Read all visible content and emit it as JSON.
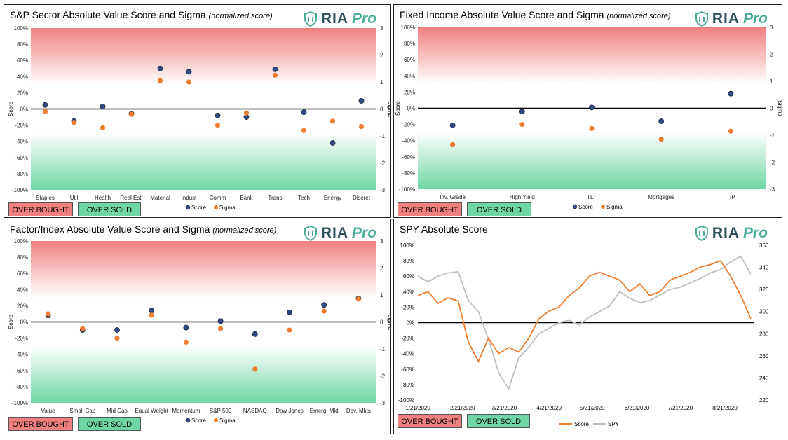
{
  "panels": [
    {
      "id": "sector",
      "title": "S&P Sector Absolute Value Score and Sigma",
      "title_note": "(normalized score)"
    },
    {
      "id": "fixed",
      "title": "Fixed Income Absolute Value Score and Sigma",
      "title_note": "(normalized score)"
    },
    {
      "id": "factor",
      "title": "Factor/Index Absolute Value Score and Sigma",
      "title_note": "(normalized score)"
    },
    {
      "id": "spy",
      "title": "SPY Absolute Score",
      "title_note": ""
    }
  ],
  "logo": {
    "text": "RIA",
    "pro": "Pro",
    "icon": "shield-icon"
  },
  "buttons": {
    "overbought": "OVER BOUGHT",
    "oversold": "OVER SOLD"
  },
  "colors": {
    "score": "#2e4a86",
    "sigma": "#ed7d31",
    "spy_line": "#bfbfbf",
    "overbought": "#f0807e",
    "oversold": "#6ed6a4"
  },
  "chart_data": [
    {
      "id": "sector",
      "type": "scatter",
      "categories": [
        "Staples",
        "Util",
        "Health",
        "Real Est.",
        "Material",
        "Indust",
        "Comm",
        "Bank",
        "Trans",
        "Tech",
        "Energy",
        "Discret"
      ],
      "series": [
        {
          "name": "Score",
          "axis": "left",
          "values": [
            5,
            -15,
            3,
            -6,
            50,
            46,
            -8,
            -10,
            49,
            -4,
            -42,
            10
          ]
        },
        {
          "name": "Sigma",
          "axis": "right",
          "values": [
            -0.1,
            -0.5,
            -0.7,
            -0.2,
            1.05,
            1.0,
            -0.6,
            -0.15,
            1.25,
            -0.8,
            -0.45,
            -0.65
          ]
        }
      ],
      "ylabel": "Score",
      "y2label": "Sigma",
      "ylim": [
        -100,
        100
      ],
      "y2lim": [
        -3,
        3
      ],
      "yticks": [
        "100%",
        "80%",
        "60%",
        "40%",
        "20%",
        "0%",
        "-20%",
        "-40%",
        "-60%",
        "-80%",
        "-100%"
      ],
      "y2ticks": [
        "3",
        "2",
        "1",
        "0",
        "-1",
        "-2",
        "-3"
      ]
    },
    {
      "id": "fixed",
      "type": "scatter",
      "categories": [
        "Inv. Grade",
        "High Yield",
        "TLT",
        "Mortgages",
        "TIP"
      ],
      "series": [
        {
          "name": "Score",
          "axis": "left",
          "values": [
            -21,
            -4,
            1,
            -16,
            18
          ]
        },
        {
          "name": "Sigma",
          "axis": "right",
          "values": [
            -1.35,
            -0.6,
            -0.75,
            -1.15,
            -0.85
          ]
        }
      ],
      "ylabel": "Score",
      "y2label": "Sigma",
      "ylim": [
        -100,
        100
      ],
      "y2lim": [
        -3,
        3
      ],
      "yticks": [
        "100%",
        "80%",
        "60%",
        "40%",
        "20%",
        "0%",
        "-20%",
        "-40%",
        "-60%",
        "-80%",
        "-100%"
      ],
      "y2ticks": [
        "3",
        "2",
        "1",
        "0",
        "-1",
        "-2",
        "-3"
      ]
    },
    {
      "id": "factor",
      "type": "scatter",
      "categories": [
        "Value",
        "Small Cap",
        "Mid Cap",
        "Equal Weight",
        "Momentum",
        "S&P 500",
        "NASDAQ",
        "Dow Jones",
        "Emerg. Mkt",
        "Dev. Mkts"
      ],
      "series": [
        {
          "name": "Score",
          "axis": "left",
          "values": [
            8,
            -10,
            -10,
            14,
            -7,
            1,
            -15,
            12,
            21,
            29
          ]
        },
        {
          "name": "Sigma",
          "axis": "right",
          "values": [
            0.3,
            -0.25,
            -0.6,
            0.25,
            -0.75,
            -0.25,
            -1.75,
            -0.3,
            0.4,
            0.85
          ]
        }
      ],
      "ylabel": "Score",
      "y2label": "Sigma",
      "ylim": [
        -100,
        100
      ],
      "y2lim": [
        -3,
        3
      ],
      "yticks": [
        "100%",
        "80%",
        "60%",
        "40%",
        "20%",
        "0%",
        "-20%",
        "-40%",
        "-60%",
        "-80%",
        "-100%"
      ],
      "y2ticks": [
        "3",
        "2",
        "1",
        "0",
        "-1",
        "-2",
        "-3"
      ]
    },
    {
      "id": "spy",
      "type": "line",
      "xticks": [
        "1/21/2020",
        "2/21/2020",
        "3/21/2020",
        "4/21/2020",
        "5/21/2020",
        "6/21/2020",
        "7/21/2020",
        "8/21/2020"
      ],
      "yticks": [
        "100%",
        "80%",
        "60%",
        "40%",
        "20%",
        "0%",
        "-20%",
        "-40%",
        "-60%",
        "-80%",
        "-100%"
      ],
      "y2ticks": [
        "360",
        "340",
        "320",
        "300",
        "280",
        "260",
        "240",
        "220"
      ],
      "ylim": [
        -100,
        100
      ],
      "y2lim": [
        220,
        360
      ],
      "series": [
        {
          "name": "Score",
          "axis": "left",
          "x": [
            "1/21/2020",
            "1/28/2020",
            "2/4/2020",
            "2/11/2020",
            "2/18/2020",
            "2/25/2020",
            "3/3/2020",
            "3/10/2020",
            "3/17/2020",
            "3/24/2020",
            "3/31/2020",
            "4/7/2020",
            "4/14/2020",
            "4/21/2020",
            "4/28/2020",
            "5/5/2020",
            "5/12/2020",
            "5/19/2020",
            "5/26/2020",
            "6/2/2020",
            "6/9/2020",
            "6/16/2020",
            "6/23/2020",
            "6/30/2020",
            "7/7/2020",
            "7/14/2020",
            "7/21/2020",
            "7/28/2020",
            "8/4/2020",
            "8/11/2020",
            "8/18/2020",
            "8/25/2020",
            "9/1/2020",
            "9/8/2020"
          ],
          "values": [
            35,
            40,
            25,
            32,
            28,
            -25,
            -50,
            -20,
            -40,
            -32,
            -38,
            -20,
            5,
            15,
            20,
            35,
            45,
            60,
            65,
            60,
            55,
            40,
            50,
            35,
            40,
            55,
            60,
            65,
            72,
            75,
            80,
            60,
            35,
            5
          ]
        },
        {
          "name": "SPY",
          "axis": "right",
          "x": [
            "1/21/2020",
            "1/28/2020",
            "2/4/2020",
            "2/11/2020",
            "2/18/2020",
            "2/25/2020",
            "3/3/2020",
            "3/10/2020",
            "3/17/2020",
            "3/24/2020",
            "3/31/2020",
            "4/7/2020",
            "4/14/2020",
            "4/21/2020",
            "4/28/2020",
            "5/5/2020",
            "5/12/2020",
            "5/19/2020",
            "5/26/2020",
            "6/2/2020",
            "6/9/2020",
            "6/16/2020",
            "6/23/2020",
            "6/30/2020",
            "7/7/2020",
            "7/14/2020",
            "7/21/2020",
            "7/28/2020",
            "8/4/2020",
            "8/11/2020",
            "8/18/2020",
            "8/25/2020",
            "9/1/2020",
            "9/8/2020"
          ],
          "values": [
            332,
            327,
            332,
            335,
            336,
            310,
            300,
            275,
            245,
            230,
            258,
            268,
            280,
            285,
            290,
            292,
            288,
            295,
            300,
            305,
            318,
            312,
            308,
            310,
            315,
            320,
            322,
            326,
            330,
            335,
            338,
            345,
            350,
            334
          ]
        }
      ]
    }
  ]
}
